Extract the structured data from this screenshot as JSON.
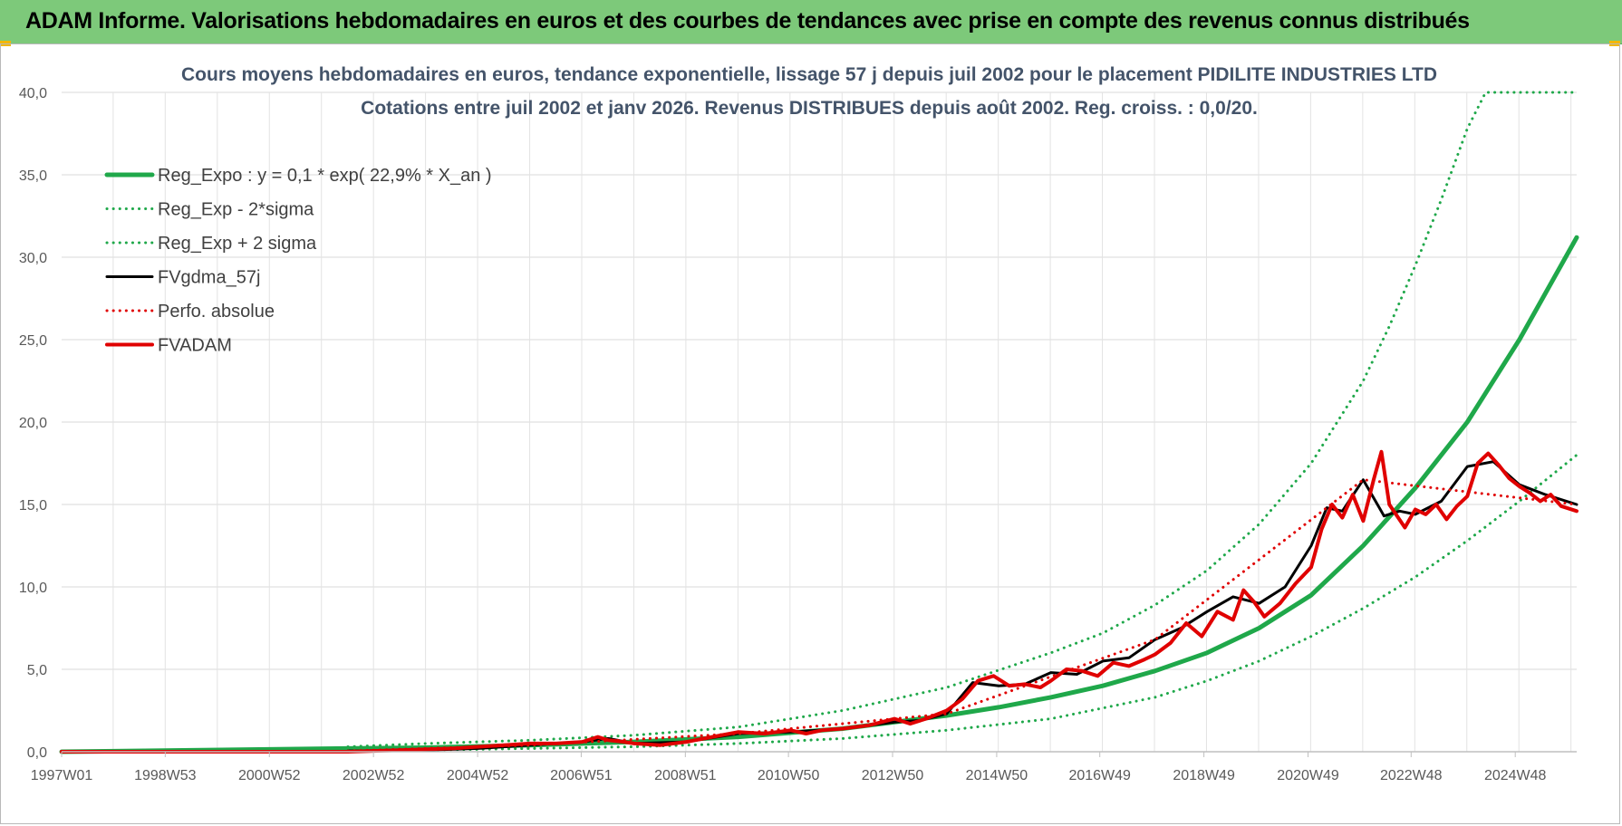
{
  "header": {
    "title": "ADAM Informe. Valorisations hebdomadaires en euros et des courbes de tendances avec prise en compte des revenus connus distribués"
  },
  "chart_data": {
    "type": "line",
    "title_line1": "Cours moyens hebdomadaires en euros, tendance exponentielle, lissage 57 j depuis juil 2002 pour le placement PIDILITE INDUSTRIES LTD",
    "title_line2": "Cotations entre juil 2002 et janv 2026. Revenus DISTRIBUES depuis août 2002. Reg. croiss. : 0,0/20.",
    "xlabel": "",
    "ylabel": "",
    "ylim": [
      0,
      40
    ],
    "yticks": [
      "0,0",
      "5,0",
      "10,0",
      "15,0",
      "20,0",
      "25,0",
      "30,0",
      "35,0",
      "40,0"
    ],
    "xlim": [
      1997.0,
      2026.1
    ],
    "xtick_labels": [
      "1997W01",
      "1998W53",
      "2000W52",
      "2002W52",
      "2004W52",
      "2006W51",
      "2008W51",
      "2010W50",
      "2012W50",
      "2014W50",
      "2016W49",
      "2018W49",
      "2020W49",
      "2022W48",
      "2024W48"
    ],
    "xtick_years": [
      1997.0,
      1998.99,
      2000.99,
      2002.99,
      2004.99,
      2006.98,
      2008.98,
      2010.96,
      2012.96,
      2014.96,
      2016.94,
      2018.94,
      2020.94,
      2022.92,
      2024.92
    ],
    "grid": true,
    "legend_position": "top-left",
    "series": [
      {
        "name": "Reg_Expo : y = 0,1 * exp( 22,9% *  X_an )",
        "color": "#1fa84a",
        "style": "solid",
        "width": 5,
        "x": [
          1997.0,
          2002.5,
          2004,
          2006,
          2008,
          2010,
          2012,
          2014,
          2015,
          2016,
          2017,
          2018,
          2019,
          2020,
          2021,
          2022,
          2023,
          2024,
          2025,
          2026.1
        ],
        "y": [
          0,
          0.2,
          0.25,
          0.4,
          0.6,
          0.9,
          1.4,
          2.2,
          2.7,
          3.3,
          4.0,
          4.9,
          6.0,
          7.5,
          9.5,
          12.5,
          16.0,
          20.0,
          25.0,
          31.2
        ]
      },
      {
        "name": "Reg_Exp - 2*sigma",
        "color": "#1fa84a",
        "style": "dotted",
        "width": 3,
        "x": [
          2002.5,
          2004,
          2006,
          2008,
          2010,
          2012,
          2014,
          2016,
          2018,
          2019,
          2020,
          2021,
          2022,
          2023,
          2024,
          2025,
          2026.1
        ],
        "y": [
          0.05,
          0.1,
          0.2,
          0.3,
          0.5,
          0.8,
          1.3,
          2.0,
          3.3,
          4.3,
          5.5,
          7.0,
          8.7,
          10.6,
          12.8,
          15.2,
          18.0
        ]
      },
      {
        "name": "Reg_Exp + 2 sigma",
        "color": "#1fa84a",
        "style": "dotted",
        "width": 3,
        "x": [
          2002.5,
          2004,
          2006,
          2008,
          2010,
          2012,
          2014,
          2016,
          2017,
          2018,
          2019,
          2020,
          2021,
          2022,
          2022.5,
          2023,
          2023.5,
          2024,
          2024.35,
          2025,
          2026.1
        ],
        "y": [
          0.3,
          0.5,
          0.7,
          1.0,
          1.5,
          2.5,
          3.9,
          6.0,
          7.2,
          8.9,
          11.0,
          13.8,
          17.5,
          22.5,
          25.8,
          29.5,
          33.5,
          37.8,
          40.0,
          40.0,
          40.0
        ]
      },
      {
        "name": "FVgdma_57j",
        "color": "#000000",
        "style": "solid",
        "width": 3,
        "x": [
          2002.5,
          2004,
          2005,
          2006,
          2007,
          2007.5,
          2008,
          2009,
          2010,
          2011,
          2012,
          2013,
          2013.5,
          2014,
          2014.5,
          2015,
          2015.5,
          2016,
          2016.5,
          2017,
          2017.5,
          2018,
          2018.5,
          2019,
          2019.5,
          2020,
          2020.5,
          2021,
          2021.3,
          2021.6,
          2022,
          2022.4,
          2022.7,
          2023,
          2023.5,
          2024,
          2024.5,
          2025,
          2025.5,
          2026.1
        ],
        "y": [
          0.05,
          0.1,
          0.2,
          0.4,
          0.6,
          0.8,
          0.5,
          0.6,
          1.1,
          1.2,
          1.4,
          1.8,
          1.9,
          2.3,
          4.2,
          4.0,
          4.1,
          4.8,
          4.7,
          5.5,
          5.7,
          6.8,
          7.5,
          8.5,
          9.4,
          9.0,
          10.0,
          12.5,
          14.8,
          14.6,
          16.5,
          14.3,
          14.6,
          14.4,
          15.2,
          17.3,
          17.6,
          16.2,
          15.6,
          15.0
        ]
      },
      {
        "name": "Perfo. absolue",
        "color": "#e00000",
        "style": "dotted",
        "width": 3,
        "x": [
          2002.5,
          2006,
          2010,
          2014,
          2018,
          2022,
          2026.1
        ],
        "y": [
          0.05,
          0.4,
          1.1,
          2.3,
          6.8,
          16.5,
          15.0
        ]
      },
      {
        "name": "FVADAM",
        "color": "#e00000",
        "style": "solid",
        "width": 4,
        "x": [
          1997.0,
          2002.5,
          2003.5,
          2004.5,
          2005,
          2005.5,
          2006,
          2006.5,
          2007,
          2007.3,
          2007.5,
          2007.8,
          2008,
          2008.5,
          2009,
          2009.5,
          2010,
          2010.5,
          2011,
          2011.3,
          2011.6,
          2012,
          2012.5,
          2013,
          2013.3,
          2013.6,
          2014,
          2014.3,
          2014.6,
          2014.9,
          2015.2,
          2015.5,
          2015.8,
          2016,
          2016.3,
          2016.6,
          2016.9,
          2017.2,
          2017.5,
          2017.8,
          2018,
          2018.3,
          2018.6,
          2018.9,
          2019.2,
          2019.5,
          2019.7,
          2019.9,
          2020.1,
          2020.4,
          2020.7,
          2021,
          2021.2,
          2021.4,
          2021.6,
          2021.8,
          2022,
          2022.2,
          2022.35,
          2022.5,
          2022.8,
          2023,
          2023.2,
          2023.4,
          2023.6,
          2023.8,
          2024,
          2024.2,
          2024.4,
          2024.6,
          2024.8,
          2025,
          2025.2,
          2025.4,
          2025.6,
          2025.8,
          2026.1
        ],
        "y": [
          0,
          0,
          0.1,
          0.2,
          0.3,
          0.4,
          0.5,
          0.5,
          0.6,
          0.9,
          0.7,
          0.6,
          0.5,
          0.4,
          0.6,
          0.9,
          1.2,
          1.1,
          1.3,
          1.1,
          1.3,
          1.4,
          1.6,
          2.0,
          1.7,
          2.0,
          2.5,
          3.2,
          4.3,
          4.6,
          4.0,
          4.1,
          3.9,
          4.3,
          5.0,
          4.9,
          4.6,
          5.4,
          5.2,
          5.6,
          5.9,
          6.6,
          7.8,
          7.0,
          8.5,
          8.0,
          9.8,
          9.1,
          8.2,
          9.0,
          10.2,
          11.2,
          13.5,
          15.0,
          14.2,
          15.6,
          14.0,
          16.5,
          18.2,
          15.0,
          13.6,
          14.7,
          14.4,
          15.0,
          14.1,
          14.9,
          15.5,
          17.5,
          18.1,
          17.4,
          16.6,
          16.1,
          15.7,
          15.2,
          15.6,
          14.9,
          14.6
        ]
      }
    ]
  }
}
